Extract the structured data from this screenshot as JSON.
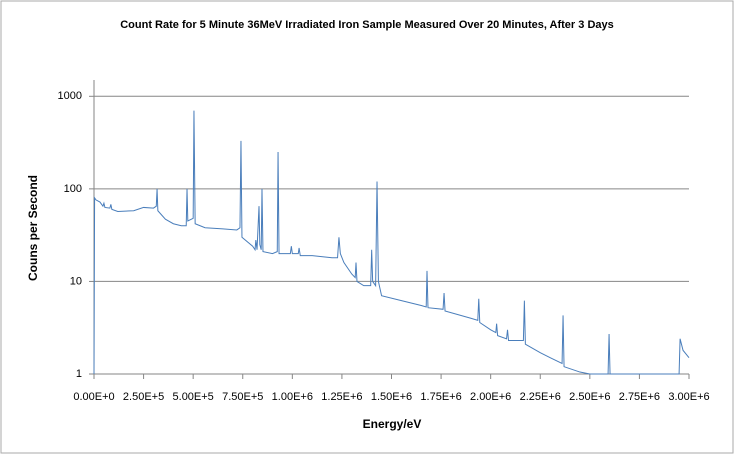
{
  "chart_data": {
    "type": "line",
    "title": "Count Rate for 5 Minute 36MeV Irradiated Iron Sample Measured Over 20 Minutes, After 3 Days",
    "x_label": "Energy/eV",
    "y_label": "Couns per Second",
    "log_y": true,
    "grid": true,
    "xlim": [
      0,
      3000000
    ],
    "xticks": [
      {
        "value": 0,
        "label": "0.00E+0"
      },
      {
        "value": 250000,
        "label": "2.50E+5"
      },
      {
        "value": 500000,
        "label": "5.00E+5"
      },
      {
        "value": 750000,
        "label": "7.50E+5"
      },
      {
        "value": 1000000,
        "label": "1.00E+6"
      },
      {
        "value": 1250000,
        "label": "1.25E+6"
      },
      {
        "value": 1500000,
        "label": "1.50E+6"
      },
      {
        "value": 1750000,
        "label": "1.75E+6"
      },
      {
        "value": 2000000,
        "label": "2.00E+6"
      },
      {
        "value": 2250000,
        "label": "2.25E+6"
      },
      {
        "value": 2500000,
        "label": "2.50E+6"
      },
      {
        "value": 2750000,
        "label": "2.75E+6"
      },
      {
        "value": 3000000,
        "label": "3.00E+6"
      }
    ],
    "ylim": [
      1,
      1500
    ],
    "yticks": [
      1,
      10,
      100,
      1000
    ],
    "x": [
      0,
      3000,
      10000,
      30000,
      45000,
      50000,
      55000,
      80000,
      85000,
      90000,
      120000,
      200000,
      250000,
      300000,
      314000,
      318000,
      322000,
      360000,
      400000,
      440000,
      465000,
      469000,
      473000,
      500000,
      504000,
      510000,
      560000,
      650000,
      720000,
      736000,
      741000,
      746000,
      800000,
      812000,
      816000,
      822000,
      832000,
      836000,
      843000,
      847000,
      852000,
      900000,
      924000,
      928000,
      933000,
      990000,
      995000,
      1000000,
      1030000,
      1034000,
      1040000,
      1100000,
      1200000,
      1228000,
      1235000,
      1242000,
      1260000,
      1300000,
      1317000,
      1321000,
      1326000,
      1360000,
      1395000,
      1400000,
      1405000,
      1420000,
      1427000,
      1434000,
      1450000,
      1550000,
      1650000,
      1675000,
      1679000,
      1684000,
      1760000,
      1765000,
      1770000,
      1900000,
      1935000,
      1940000,
      1945000,
      2000000,
      2026000,
      2030000,
      2035000,
      2080000,
      2085000,
      2090000,
      2165000,
      2170000,
      2175000,
      2250000,
      2300000,
      2360000,
      2365000,
      2370000,
      2450000,
      2500000,
      2592000,
      2597000,
      2602000,
      2950000,
      2955000,
      2970000,
      3000000
    ],
    "series": [
      {
        "color": "#4a7ebb",
        "values": [
          1,
          80,
          76,
          72,
          65,
          70,
          63,
          62,
          68,
          60,
          57,
          58,
          63,
          62,
          65,
          100,
          58,
          47,
          42,
          40,
          40,
          100,
          45,
          48,
          700,
          42,
          38,
          37,
          36,
          38,
          330,
          30,
          24,
          22,
          28,
          22,
          65,
          25,
          22,
          100,
          21,
          20,
          21,
          250,
          20,
          20,
          24,
          20,
          20,
          23,
          19,
          19,
          18,
          18,
          30,
          20,
          16,
          12,
          11,
          16,
          10,
          9,
          9,
          22,
          10,
          9,
          120,
          10,
          7,
          6.2,
          5.5,
          5.3,
          13,
          5.2,
          5,
          7.5,
          4.8,
          4,
          3.8,
          6.5,
          3.6,
          3,
          2.8,
          3.5,
          2.6,
          2.4,
          3,
          2.3,
          2.3,
          6.2,
          2.1,
          1.7,
          1.5,
          1.3,
          4.3,
          1.2,
          1.05,
          1,
          1,
          2.7,
          1,
          1,
          2.4,
          1.8,
          1.5
        ]
      }
    ]
  }
}
